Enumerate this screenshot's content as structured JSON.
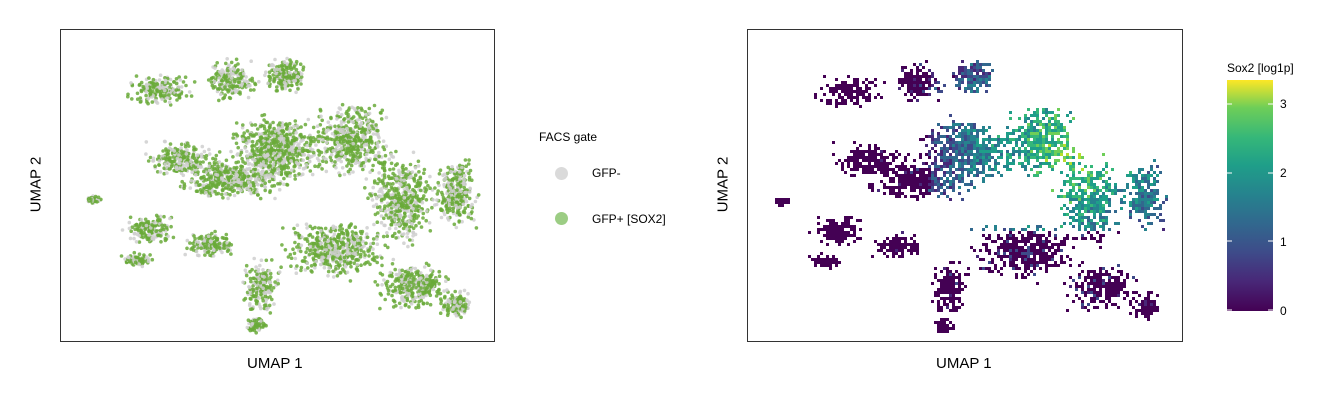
{
  "chart_data": [
    {
      "type": "scatter",
      "xlabel": "UMAP 1",
      "ylabel": "UMAP 2",
      "legend": {
        "title": "FACS gate",
        "placement": "right",
        "entries": [
          {
            "label": "GFP-",
            "color": "#d3d3d3"
          },
          {
            "label": "GFP+ [SOX2]",
            "color": "#6aaa3a"
          }
        ]
      },
      "grid": false
    },
    {
      "type": "heatmap",
      "xlabel": "UMAP 1",
      "ylabel": "UMAP 2",
      "colorbar": {
        "title": "Sox2 [log1p]",
        "ticks": [
          "0",
          "1",
          "2",
          "3"
        ],
        "range": [
          0,
          3.25
        ],
        "colormap": "viridis",
        "placement": "right"
      },
      "grid": false
    }
  ]
}
